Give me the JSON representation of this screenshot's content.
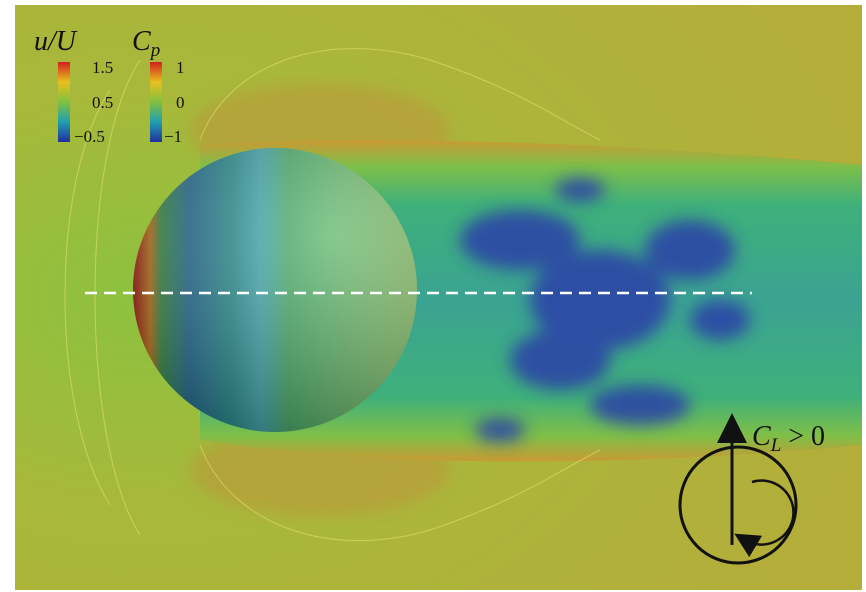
{
  "colorbars": [
    {
      "label": {
        "base": "u/U"
      },
      "ticks": [
        "1.5",
        "0.5",
        "−0.5"
      ]
    },
    {
      "label": {
        "base": "C",
        "sub": "p"
      },
      "ticks": [
        "1",
        "0",
        "−1"
      ]
    }
  ],
  "annotation": {
    "base": "C",
    "sub": "L",
    "rest": " > 0"
  }
}
